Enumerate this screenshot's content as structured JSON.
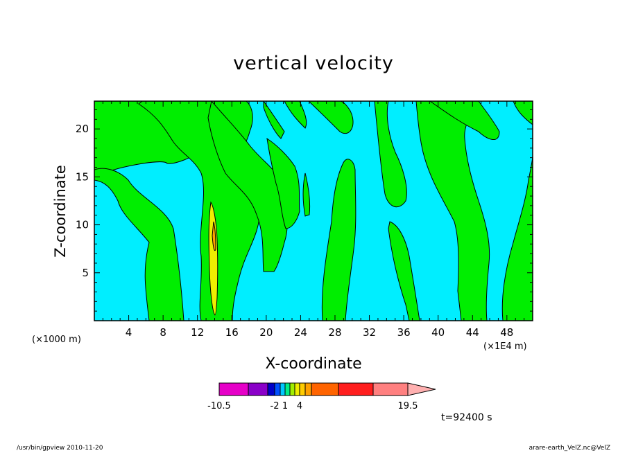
{
  "chart_data": {
    "type": "heatmap",
    "title": "vertical velocity",
    "xlabel": "X-coordinate",
    "ylabel": "Z-coordinate",
    "x_unit_left": "(×1000 m)",
    "x_unit_right": "(×1E4 m)",
    "xlim": [
      0,
      51
    ],
    "ylim": [
      0,
      22.9
    ],
    "x_ticks": [
      4,
      8,
      12,
      16,
      20,
      24,
      28,
      32,
      36,
      40,
      44,
      48
    ],
    "y_ticks": [
      5,
      10,
      15,
      20
    ],
    "background_color": "#00eeff",
    "positive_color": "#00ee00",
    "colorbar": {
      "labels": [
        "-10.5",
        "-2",
        "1",
        "4",
        "19.5"
      ],
      "colors": [
        "#e600c8",
        "#8a00c8",
        "#0000c8",
        "#0050ff",
        "#00c8ff",
        "#00ee88",
        "#a0ee00",
        "#eeee00",
        "#ffcc00",
        "#ffa000",
        "#ff6400",
        "#ff1e1e",
        "#ff8080",
        "#ffb0b0"
      ]
    },
    "time_label": "t=92400 s"
  },
  "footer": {
    "left": "/usr/bin/gpview  2010-11-20",
    "right": "arare-earth_VelZ.nc@VelZ"
  }
}
